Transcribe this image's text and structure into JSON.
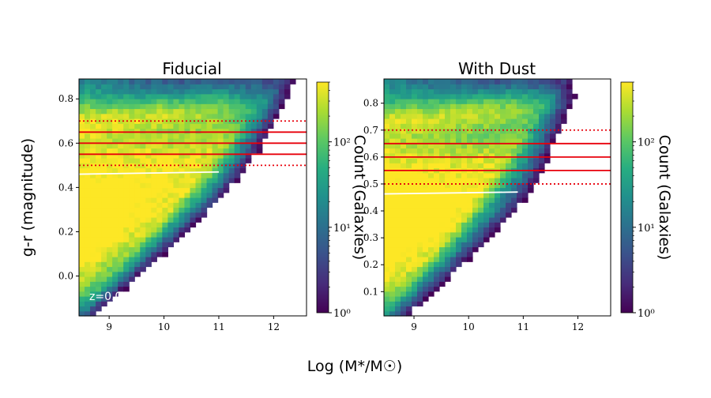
{
  "xlabel": "Log (M*/M☉)",
  "ylabel": "g-r (magnitude)",
  "chart_data": [
    {
      "type": "heatmap",
      "title": "Fiducial",
      "xlim": [
        8.45,
        12.6
      ],
      "ylim": [
        -0.18,
        0.89
      ],
      "xticks": [
        9,
        10,
        11,
        12
      ],
      "yticks": [
        0.0,
        0.2,
        0.4,
        0.6,
        0.8
      ],
      "ytick_labels": [
        "0.0",
        "0.2",
        "0.4",
        "0.6",
        "0.8"
      ],
      "annotation": "z=0.0",
      "solid_red_lines": [
        0.55,
        0.6,
        0.65
      ],
      "dotted_red_lines": [
        0.5,
        0.7
      ],
      "white_line": {
        "x": [
          8.45,
          11.0
        ],
        "y": [
          0.46,
          0.47
        ]
      },
      "red_sequence": {
        "center": 0.72,
        "width": 0.04,
        "slope": 0.02
      },
      "blue_cloud": {
        "center": 0.27,
        "width": 0.13,
        "slope": 0.12
      },
      "edge": {
        "x0": 8.5,
        "y0": -0.16,
        "x1": 11.8,
        "y1": 0.78
      },
      "colorbar": {
        "label": "Count (Galaxies)",
        "scale": "log",
        "range": [
          1,
          500
        ],
        "ticks": [
          "10⁰",
          "10¹",
          "10²"
        ]
      }
    },
    {
      "type": "heatmap",
      "title": "With Dust",
      "xlim": [
        8.45,
        12.6
      ],
      "ylim": [
        0.01,
        0.89
      ],
      "xticks": [
        9,
        10,
        11,
        12
      ],
      "yticks": [
        0.1,
        0.2,
        0.3,
        0.4,
        0.5,
        0.6,
        0.7,
        0.8
      ],
      "ytick_labels": [
        "0.1",
        "0.2",
        "0.3",
        "0.4",
        "0.5",
        "0.6",
        "0.7",
        "0.8"
      ],
      "annotation": "",
      "solid_red_lines": [
        0.55,
        0.6,
        0.65
      ],
      "dotted_red_lines": [
        0.5,
        0.7
      ],
      "white_line": {
        "x": [
          8.45,
          10.9
        ],
        "y": [
          0.463,
          0.47
        ]
      },
      "red_sequence": {
        "center": 0.755,
        "width": 0.035,
        "slope": 0.02
      },
      "blue_cloud": {
        "center": 0.35,
        "width": 0.11,
        "slope": 0.09
      },
      "edge": {
        "x0": 8.5,
        "y0": 0.02,
        "x1": 11.5,
        "y1": 0.82
      },
      "colorbar": {
        "label": "Count (Galaxies)",
        "scale": "log",
        "range": [
          1,
          500
        ],
        "ticks": [
          "10⁰",
          "10¹",
          "10²"
        ]
      }
    }
  ]
}
